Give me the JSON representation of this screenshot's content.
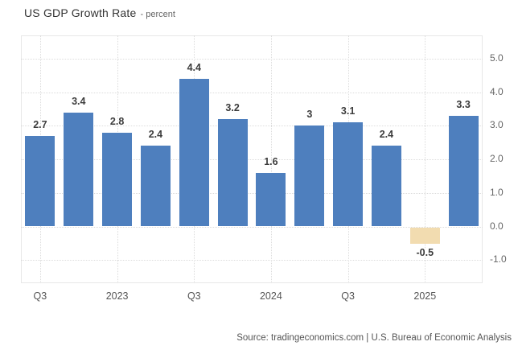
{
  "header": {
    "title": "US GDP Growth Rate",
    "subtitle": "- percent"
  },
  "footer": {
    "source": "Source: tradingeconomics.com | U.S. Bureau of Economic Analysis"
  },
  "colors": {
    "bar_positive": "#4e7fbe",
    "bar_negative": "#f2dcb0",
    "grid": "#dcdcdc",
    "plot_border": "#e7e7e7",
    "value_label": "#3c3c3c",
    "axis_label": "#666666"
  },
  "chart_data": {
    "type": "bar",
    "title": "US GDP Growth Rate",
    "xlabel": "",
    "ylabel": "percent",
    "values": [
      2.7,
      3.4,
      2.8,
      2.4,
      4.4,
      3.2,
      1.6,
      3,
      3.1,
      2.4,
      -0.5,
      3.3
    ],
    "bar_labels": [
      "2.7",
      "3.4",
      "2.8",
      "2.4",
      "4.4",
      "3.2",
      "1.6",
      "3",
      "3.1",
      "2.4",
      "-0.5",
      "3.3"
    ],
    "x_ticks": [
      {
        "label": "Q3",
        "bar_index": 0
      },
      {
        "label": "2023",
        "bar_index": 2
      },
      {
        "label": "Q3",
        "bar_index": 4
      },
      {
        "label": "2024",
        "bar_index": 6
      },
      {
        "label": "Q3",
        "bar_index": 8
      },
      {
        "label": "2025",
        "bar_index": 10
      }
    ],
    "y_ticks": [
      "5.0",
      "4.0",
      "3.0",
      "2.0",
      "1.0",
      "0.0",
      "-1.0"
    ],
    "y_tick_values": [
      5,
      4,
      3,
      2,
      1,
      0,
      -1
    ],
    "ylim": [
      -1.69,
      5.69
    ],
    "grid": true,
    "legend": "none",
    "axis_side": "right"
  }
}
